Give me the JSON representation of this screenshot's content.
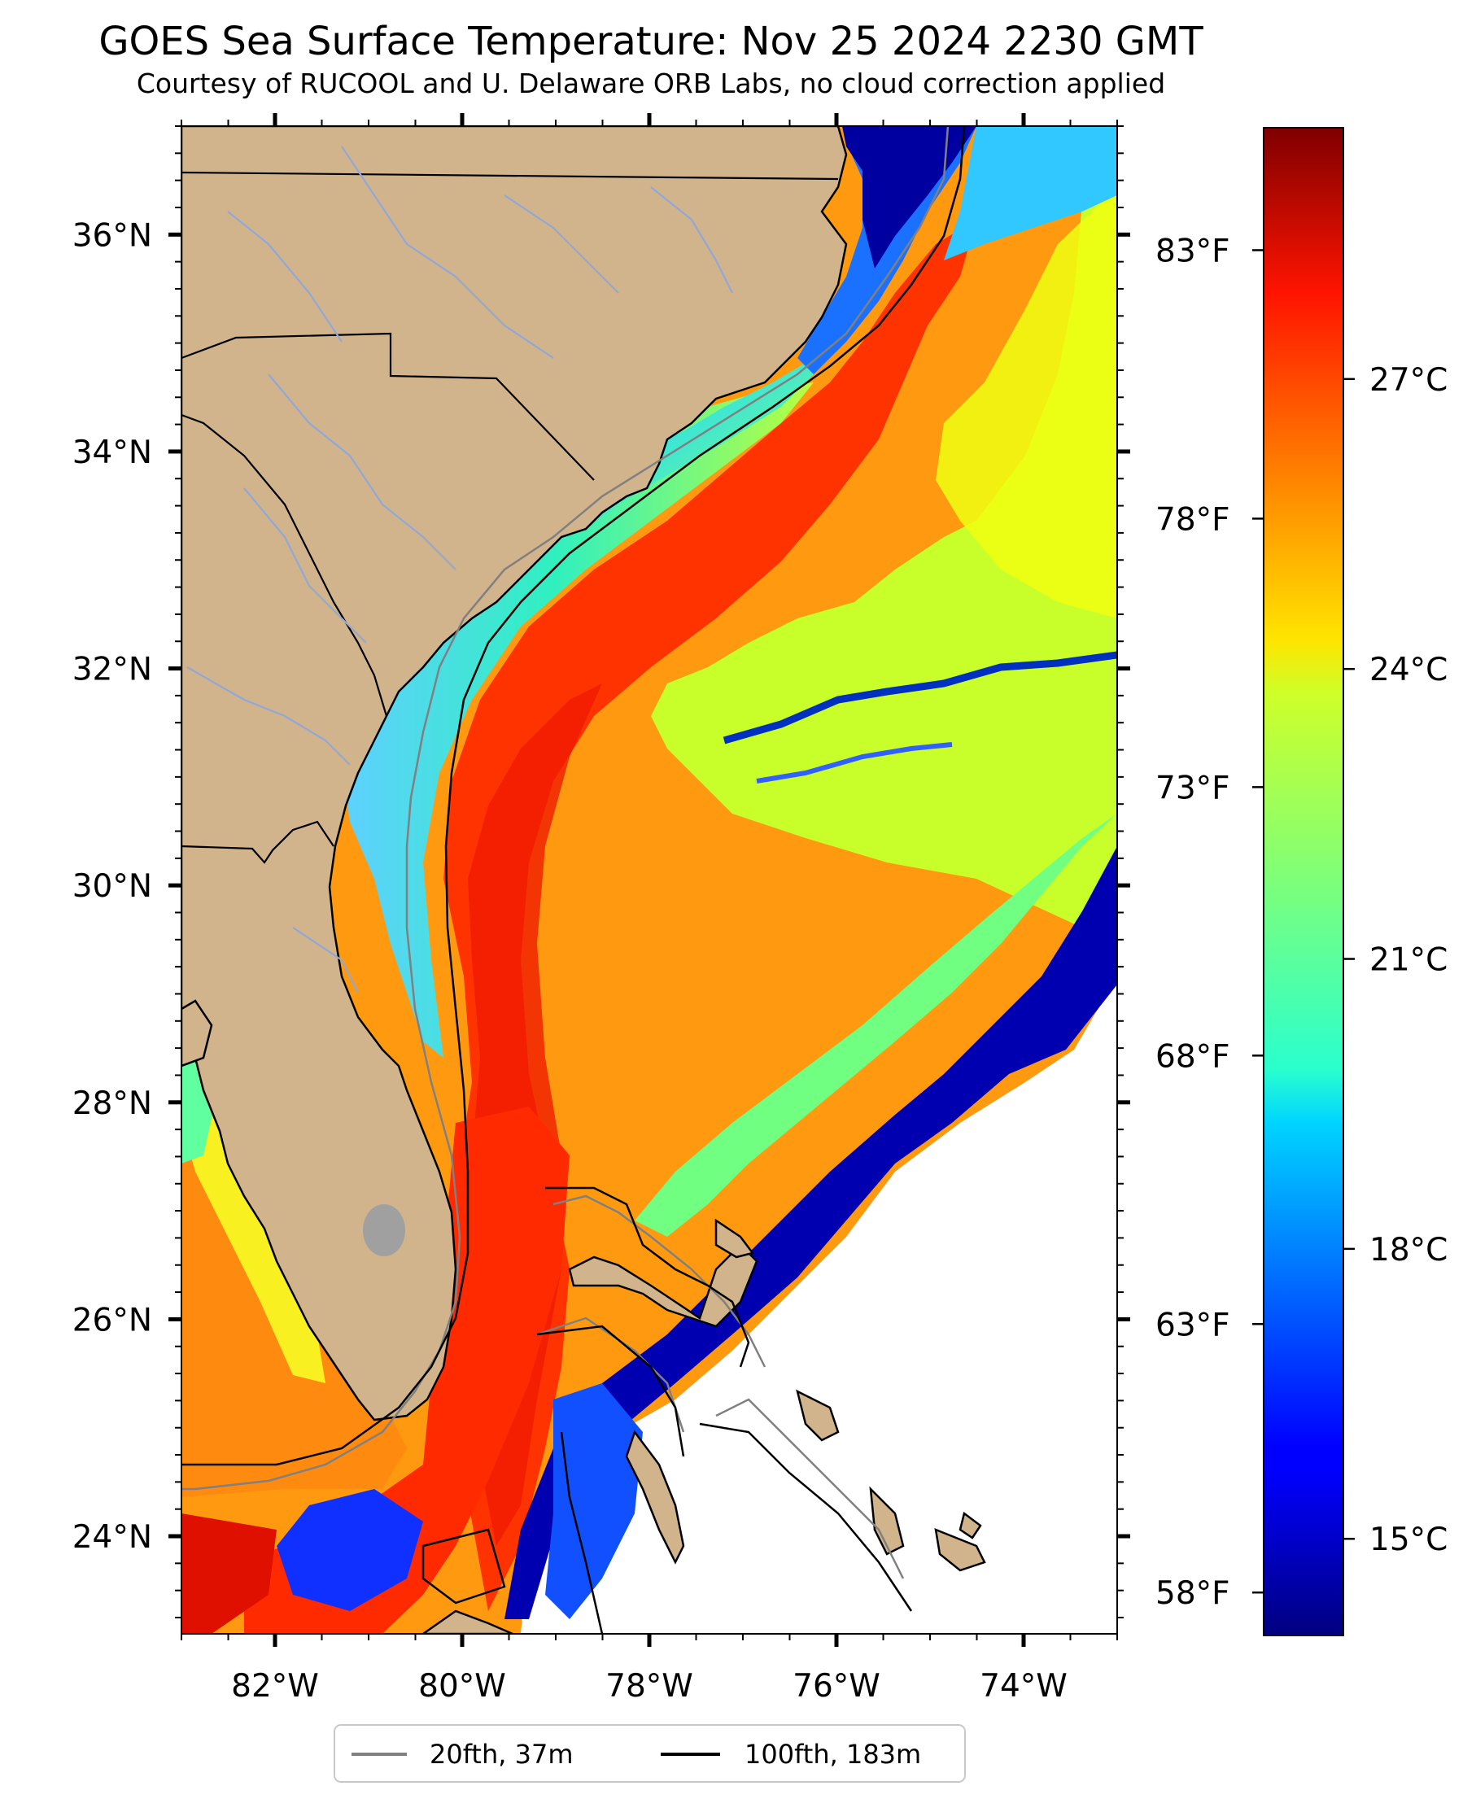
{
  "title": "GOES Sea Surface Temperature: Nov 25 2024 2230 GMT",
  "subtitle": "Courtesy of RUCOOL and U. Delaware ORB Labs, no cloud correction applied",
  "map": {
    "lon_ticks": [
      {
        "value": -82,
        "label": "82°W"
      },
      {
        "value": -80,
        "label": "80°W"
      },
      {
        "value": -78,
        "label": "78°W"
      },
      {
        "value": -76,
        "label": "76°W"
      },
      {
        "value": -74,
        "label": "74°W"
      }
    ],
    "lat_ticks": [
      {
        "value": 36,
        "label": "36°N"
      },
      {
        "value": 34,
        "label": "34°N"
      },
      {
        "value": 32,
        "label": "32°N"
      },
      {
        "value": 30,
        "label": "30°N"
      },
      {
        "value": 28,
        "label": "28°N"
      },
      {
        "value": 26,
        "label": "26°N"
      },
      {
        "value": 24,
        "label": "24°N"
      }
    ],
    "lon_range": [
      -83,
      -73
    ],
    "lat_range": [
      23.1,
      37.0
    ]
  },
  "colorbar": {
    "celsius_ticks": [
      {
        "value": 27,
        "label": "27°C"
      },
      {
        "value": 24,
        "label": "24°C"
      },
      {
        "value": 21,
        "label": "21°C"
      },
      {
        "value": 18,
        "label": "18°C"
      },
      {
        "value": 15,
        "label": "15°C"
      }
    ],
    "fahrenheit_ticks": [
      {
        "value": 83,
        "label": "83°F"
      },
      {
        "value": 78,
        "label": "78°F"
      },
      {
        "value": 73,
        "label": "73°F"
      },
      {
        "value": 68,
        "label": "68°F"
      },
      {
        "value": 63,
        "label": "63°F"
      },
      {
        "value": 58,
        "label": "58°F"
      }
    ],
    "range_c": [
      14.0,
      29.6
    ],
    "colormap": "jet"
  },
  "legend": {
    "items": [
      {
        "label": "20fth, 37m",
        "color": "#808080"
      },
      {
        "label": "100fth, 183m",
        "color": "#000000"
      }
    ]
  },
  "colors": {
    "land": "#d2b48c",
    "rivers": "#8fa8d8",
    "no_data": "#ffffff",
    "isobath_20": "#808080",
    "isobath_100": "#000000"
  }
}
